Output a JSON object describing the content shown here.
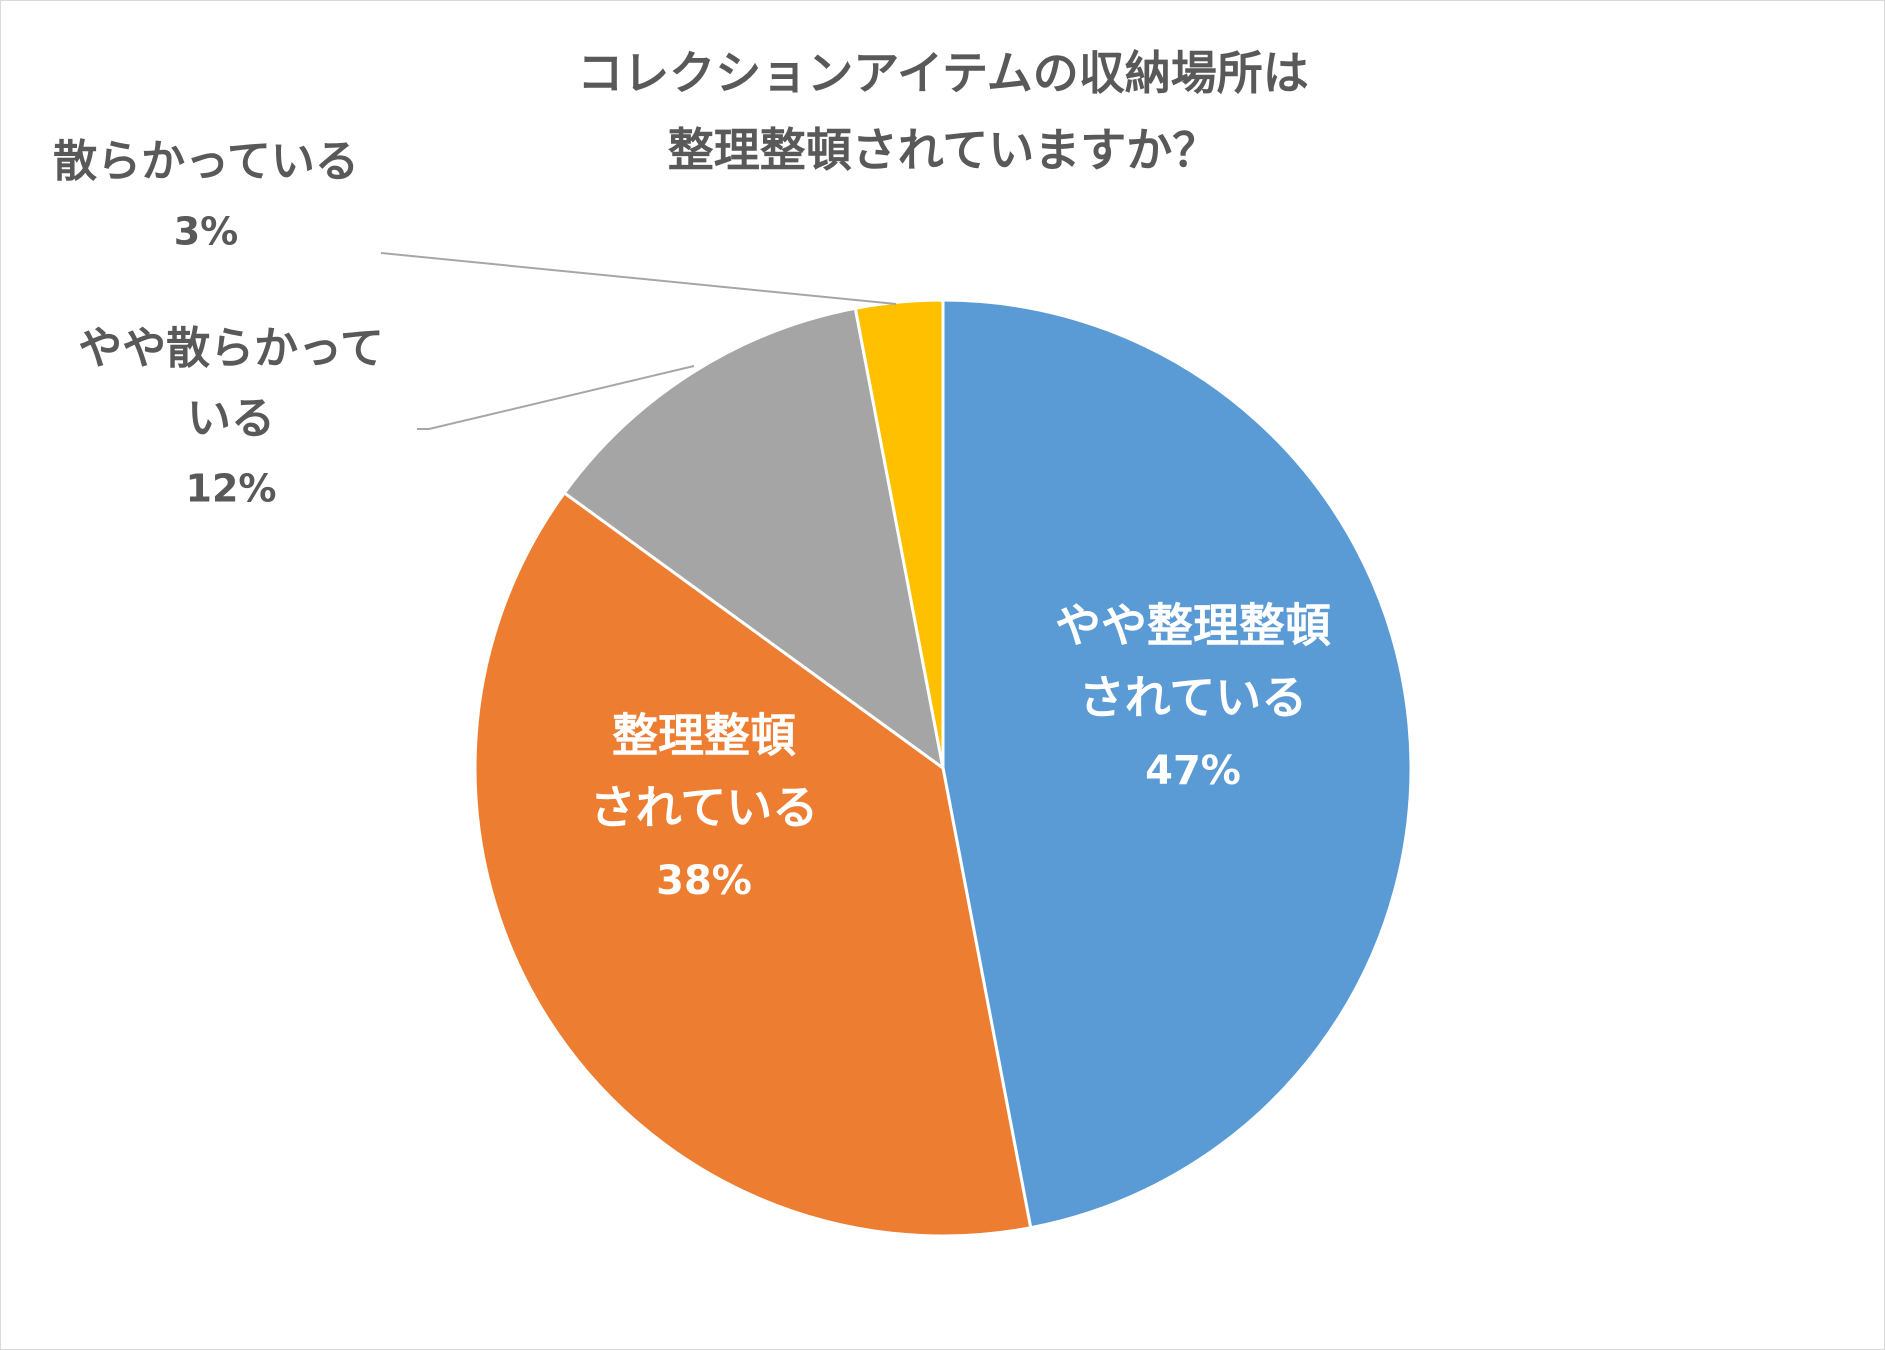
{
  "chart_data": {
    "type": "pie",
    "title_lines": [
      "コレクションアイテムの収納場所は",
      "整理整頓されていますか？"
    ],
    "start_angle_deg": 0,
    "direction": "clockwise",
    "slices": [
      {
        "label_lines": [
          "やや整理整頓",
          "されている"
        ],
        "value": 47,
        "pct_text": "47%",
        "color": "#5b9bd5",
        "label_pos": "inside"
      },
      {
        "label_lines": [
          "整理整頓",
          "されている"
        ],
        "value": 38,
        "pct_text": "38%",
        "color": "#ed7d31",
        "label_pos": "inside"
      },
      {
        "label_lines": [
          "やや散らかって",
          "いる"
        ],
        "value": 12,
        "pct_text": "12%",
        "color": "#a5a5a5",
        "label_pos": "outside"
      },
      {
        "label_lines": [
          "散らかっている"
        ],
        "value": 3,
        "pct_text": "3%",
        "color": "#ffc000",
        "label_pos": "outside"
      }
    ],
    "legend": "none",
    "leader_line_color": "#a6a6a6"
  }
}
